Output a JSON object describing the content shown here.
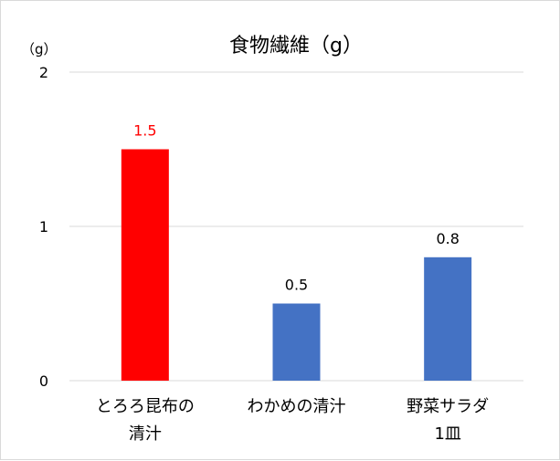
{
  "chart_data": {
    "type": "bar",
    "title": "食物繊維（g）",
    "unit_label": "（g）",
    "categories": [
      [
        "とろろ昆布の",
        "清汁"
      ],
      [
        "わかめの清汁"
      ],
      [
        "野菜サラダ",
        "1皿"
      ]
    ],
    "values": [
      1.5,
      0.5,
      0.8
    ],
    "data_labels": [
      "1.5",
      "0.5",
      "0.8"
    ],
    "bar_colors": [
      "#ff0000",
      "#4472c4",
      "#4472c4"
    ],
    "label_colors": [
      "#ff0000",
      "#000000",
      "#000000"
    ],
    "ylim": [
      0,
      2
    ],
    "yticks": [
      0,
      1,
      2
    ],
    "ytick_labels": [
      "0",
      "1",
      "2"
    ],
    "grid": true,
    "legend": "none"
  }
}
